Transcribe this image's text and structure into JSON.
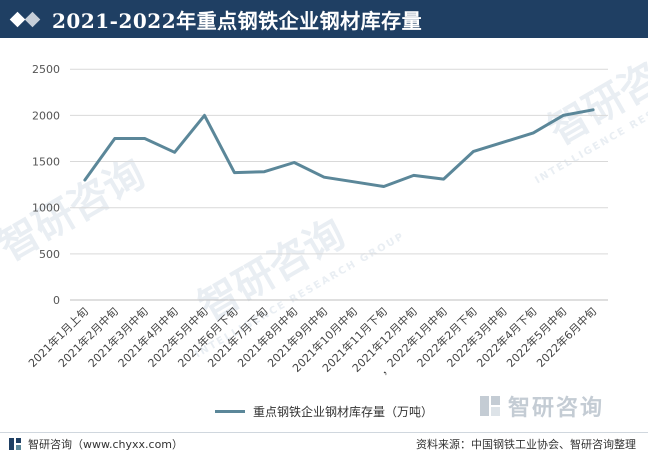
{
  "header": {
    "title": "2021-2022年重点钢铁企业钢材库存量"
  },
  "chart_data": {
    "type": "line",
    "title": "2021-2022年重点钢铁企业钢材库存量",
    "categories": [
      "2021年1月上旬",
      "2021年2月中旬",
      "2021年3月中旬",
      "2021年4月中旬",
      "2022年5月中旬",
      "2021年6月下旬",
      "2021年7月下旬",
      "2021年8月中旬",
      "2021年9月中旬",
      "2021年10月中旬",
      "2021年11月下旬",
      "2021年12月中旬",
      "，2022年1月中旬",
      "2022年2月下旬",
      "2022年3月中旬",
      "2022年4月下旬",
      "2022年5月中旬",
      "2022年6月中旬"
    ],
    "series": [
      {
        "name": "重点钢铁企业钢材库存量（万吨）",
        "color": "#5b8799",
        "values": [
          1300,
          1750,
          1750,
          1600,
          2000,
          1380,
          1390,
          1490,
          1330,
          1280,
          1230,
          1350,
          1310,
          1610,
          1710,
          1810,
          2000,
          2060
        ]
      }
    ],
    "yticks": [
      0,
      500,
      1000,
      1500,
      2000,
      2500
    ],
    "ylim": [
      0,
      2600
    ],
    "grid": true,
    "legend_position": "bottom"
  },
  "watermark": {
    "text": "智研咨询",
    "subtext": "INTELLIGENCE RESEARCH GROUP"
  },
  "brand": {
    "name": "智研咨询"
  },
  "footer": {
    "left_text": "智研咨询（www.chyxx.com）",
    "right_text": "资料来源：中国钢铁工业协会、智研咨询整理"
  }
}
